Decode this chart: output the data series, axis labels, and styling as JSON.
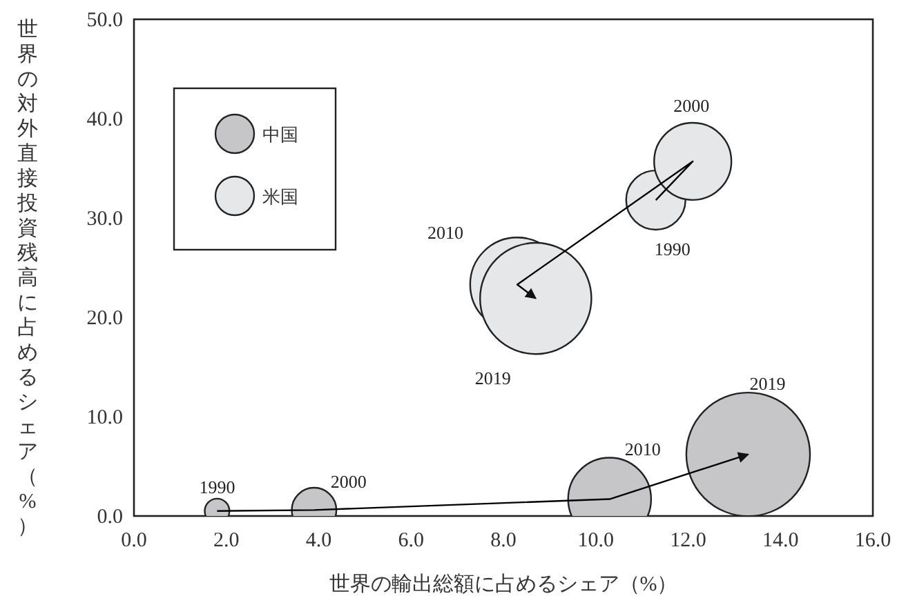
{
  "chart_data": {
    "type": "bubble",
    "xlabel": "世界の輸出総額に占めるシェア（%）",
    "ylabel": "世界の対外直接投資残高に占めるシェア（%）",
    "xlim": [
      0,
      16
    ],
    "ylim": [
      0,
      50
    ],
    "xticks": [
      {
        "value": 0,
        "label": "0.0"
      },
      {
        "value": 2,
        "label": "2.0"
      },
      {
        "value": 4,
        "label": "4.0"
      },
      {
        "value": 6,
        "label": "6.0"
      },
      {
        "value": 8,
        "label": "8.0"
      },
      {
        "value": 10,
        "label": "10.0"
      },
      {
        "value": 12,
        "label": "12.0"
      },
      {
        "value": 14,
        "label": "14.0"
      },
      {
        "value": 16,
        "label": "16.0"
      }
    ],
    "yticks": [
      {
        "value": 0,
        "label": "0.0"
      },
      {
        "value": 10,
        "label": "10.0"
      },
      {
        "value": 20,
        "label": "20.0"
      },
      {
        "value": 30,
        "label": "30.0"
      },
      {
        "value": 40,
        "label": "40.0"
      },
      {
        "value": 50,
        "label": "50.0"
      }
    ],
    "legend": "top left",
    "grid": false,
    "series": [
      {
        "name": "中国",
        "color": "#c6c6c8",
        "x": [
          1.8,
          3.9,
          10.3,
          13.3
        ],
        "values": [
          0.5,
          0.6,
          1.7,
          6.2
        ],
        "sizes": [
          0.04,
          0.13,
          0.45,
          1
        ]
      },
      {
        "name": "米国",
        "color": "#e6e7e9",
        "x": [
          11.3,
          12.1,
          8.3,
          8.7
        ],
        "values": [
          31.8,
          35.7,
          23.3,
          21.9
        ],
        "sizes": [
          0.23,
          0.39,
          0.58,
          0.81
        ]
      },
      {
        "type": "line",
        "color": "#000000",
        "x": [
          1.8,
          3.9,
          10.3,
          13.3
        ],
        "values": [
          0.5,
          0.6,
          1.7,
          6.2
        ]
      },
      {
        "type": "line",
        "color": "#000000",
        "x": [
          11.3,
          12.1,
          8.3,
          8.7
        ],
        "values": [
          31.8,
          35.7,
          23.3,
          21.9
        ]
      }
    ],
    "annotations": [
      {
        "text": "1990",
        "x": 1.8,
        "y": 0.5
      },
      {
        "text": "2000",
        "x": 3.9,
        "y": 0.6
      },
      {
        "text": "2010",
        "x": 10.3,
        "y": 1.7
      },
      "2019",
      {
        "text": "1990",
        "x": 11.3,
        "y": 31.8
      },
      {
        "text": "2000",
        "x": 12.1,
        "y": 35.7
      },
      "2010",
      "2019"
    ]
  }
}
